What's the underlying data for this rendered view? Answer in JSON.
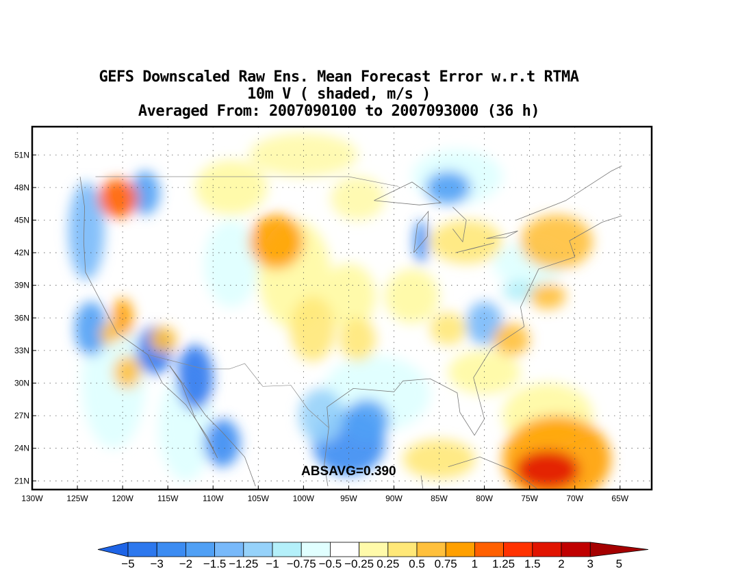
{
  "title": {
    "line1": "GEFS Downscaled Raw Ens. Mean Forecast Error w.r.t RTMA",
    "line2": "10m V ( shaded, m/s )",
    "line3": "Averaged From: 2007090100 to 2007093000 (36 h)"
  },
  "map": {
    "lat_labels": [
      "51N",
      "48N",
      "45N",
      "42N",
      "39N",
      "36N",
      "33N",
      "30N",
      "27N",
      "24N",
      "21N"
    ],
    "lon_labels": [
      "130W",
      "125W",
      "120W",
      "115W",
      "110W",
      "105W",
      "100W",
      "95W",
      "90W",
      "85W",
      "80W",
      "75W",
      "70W",
      "65W"
    ],
    "lat_range": [
      20.2,
      53.6
    ],
    "lon_range": [
      -130,
      -61.5
    ],
    "grid": true,
    "absavg": "ABSAVG=0.390"
  },
  "colorbar": {
    "labels": [
      "−5",
      "−3",
      "−2",
      "−1.5",
      "−1.25",
      "−1",
      "−0.75",
      "−0.5",
      "−0.25",
      "0.25",
      "0.5",
      "0.75",
      "1",
      "1.25",
      "1.5",
      "2",
      "3",
      "5"
    ],
    "colors": [
      "#1e64e6",
      "#2d78ee",
      "#3c8cf2",
      "#50a0f5",
      "#78b9fa",
      "#96d2fa",
      "#b4f0fa",
      "#e1ffff",
      "#ffffff",
      "#fffaaa",
      "#ffe878",
      "#ffc03c",
      "#ffa000",
      "#ff6000",
      "#ff3200",
      "#e11400",
      "#c00000",
      "#a50000"
    ]
  },
  "features": {
    "dry": [
      "#ffffff",
      "#e1ffff",
      "#fffaaa"
    ],
    "blue": [
      {
        "lon": -124,
        "lat": 44,
        "rx": 2.0,
        "ry": 4.5,
        "level": 4
      },
      {
        "lon": -123.5,
        "lat": 35,
        "rx": 1.8,
        "ry": 2.5,
        "level": 3
      },
      {
        "lon": -117.5,
        "lat": 47.5,
        "rx": 1.6,
        "ry": 2.0,
        "level": 3
      },
      {
        "lon": -116.5,
        "lat": 33,
        "rx": 2.0,
        "ry": 2.2,
        "level": 1
      },
      {
        "lon": -112,
        "lat": 30.5,
        "rx": 2.0,
        "ry": 3.0,
        "level": 1
      },
      {
        "lon": -109,
        "lat": 24.5,
        "rx": 2.0,
        "ry": 2.2,
        "level": 2
      },
      {
        "lon": -95,
        "lat": 24.5,
        "rx": 4.0,
        "ry": 3.0,
        "level": 2
      },
      {
        "lon": -93,
        "lat": 26.5,
        "rx": 2.5,
        "ry": 2.0,
        "level": 3
      },
      {
        "lon": -84,
        "lat": 48,
        "rx": 2.5,
        "ry": 1.5,
        "level": 3
      },
      {
        "lon": -87,
        "lat": 43,
        "rx": 0.8,
        "ry": 2.0,
        "level": 2
      },
      {
        "lon": -80,
        "lat": 35.5,
        "rx": 2.0,
        "ry": 2.0,
        "level": 4
      },
      {
        "lon": -98,
        "lat": 27,
        "rx": 2.5,
        "ry": 2.5,
        "level": 5
      },
      {
        "lon": -76,
        "lat": 38.5,
        "rx": 2.0,
        "ry": 1.0,
        "level": 6
      }
    ],
    "warm": [
      {
        "lon": -120.5,
        "lat": 47,
        "rx": 2.2,
        "ry": 1.8,
        "level": 13
      },
      {
        "lon": -103,
        "lat": 43,
        "rx": 3.0,
        "ry": 2.5,
        "level": 12
      },
      {
        "lon": -120,
        "lat": 36,
        "rx": 1.2,
        "ry": 1.8,
        "level": 12
      },
      {
        "lon": -121.5,
        "lat": 34.5,
        "rx": 1.0,
        "ry": 1.0,
        "level": 11
      },
      {
        "lon": -115.5,
        "lat": 34,
        "rx": 1.5,
        "ry": 1.2,
        "level": 11
      },
      {
        "lon": -119.5,
        "lat": 31,
        "rx": 1.5,
        "ry": 1.5,
        "level": 11
      },
      {
        "lon": -99,
        "lat": 35,
        "rx": 2.5,
        "ry": 3.0,
        "level": 10
      },
      {
        "lon": -94,
        "lat": 34,
        "rx": 2.0,
        "ry": 2.0,
        "level": 10
      },
      {
        "lon": -82,
        "lat": 43,
        "rx": 4.0,
        "ry": 2.0,
        "level": 10
      },
      {
        "lon": -72,
        "lat": 43,
        "rx": 4.0,
        "ry": 2.5,
        "level": 11
      },
      {
        "lon": -84,
        "lat": 35,
        "rx": 2.0,
        "ry": 1.5,
        "level": 10
      },
      {
        "lon": -77,
        "lat": 34,
        "rx": 2.0,
        "ry": 1.5,
        "level": 11
      },
      {
        "lon": -73,
        "lat": 38,
        "rx": 2.0,
        "ry": 1.2,
        "level": 11
      },
      {
        "lon": -72,
        "lat": 23,
        "rx": 6.0,
        "ry": 4.0,
        "level": 12
      },
      {
        "lon": -73,
        "lat": 22,
        "rx": 3.5,
        "ry": 1.8,
        "level": 15
      },
      {
        "lon": -85,
        "lat": 23,
        "rx": 4.0,
        "ry": 1.8,
        "level": 10
      },
      {
        "lon": -100,
        "lat": 51,
        "rx": 6.0,
        "ry": 2.0,
        "level": 9
      },
      {
        "lon": -94,
        "lat": 47,
        "rx": 3.0,
        "ry": 2.0,
        "level": 9
      }
    ]
  }
}
